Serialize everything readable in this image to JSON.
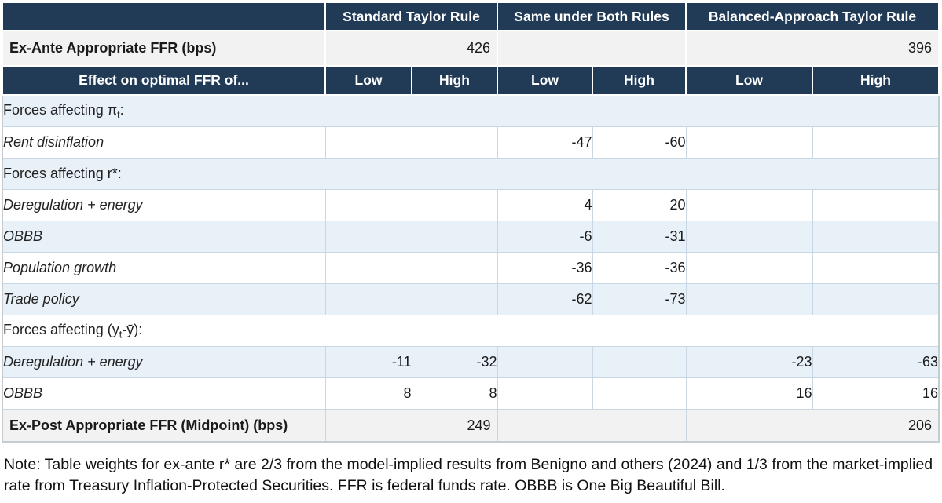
{
  "table": {
    "group_headers": [
      "",
      "Standard Taylor Rule",
      "Same under Both Rules",
      "Balanced-Approach Taylor Rule"
    ],
    "ex_ante": {
      "label": "Ex-Ante Appropriate FFR (bps)",
      "standard": "426",
      "same": "",
      "balanced": "396"
    },
    "effect_header": {
      "label": "Effect on optimal FFR of...",
      "low": "Low",
      "high": "High"
    },
    "rows": [
      {
        "kind": "section",
        "bg": "blue",
        "segments": [
          {
            "t": "Forces affecting π"
          },
          {
            "t": "t",
            "sub": true
          },
          {
            "t": ":"
          }
        ]
      },
      {
        "kind": "item",
        "bg": "white",
        "label": "Rent disinflation",
        "cells": [
          "",
          "",
          "-47",
          "-60",
          "",
          ""
        ]
      },
      {
        "kind": "section",
        "bg": "blue",
        "segments": [
          {
            "t": "Forces affecting r*:"
          }
        ]
      },
      {
        "kind": "item",
        "bg": "white",
        "label": "Deregulation + energy",
        "cells": [
          "",
          "",
          "4",
          "20",
          "",
          ""
        ]
      },
      {
        "kind": "item",
        "bg": "blue",
        "label": "OBBB",
        "cells": [
          "",
          "",
          "-6",
          "-31",
          "",
          ""
        ]
      },
      {
        "kind": "item",
        "bg": "white",
        "label": "Population growth",
        "cells": [
          "",
          "",
          "-36",
          "-36",
          "",
          ""
        ]
      },
      {
        "kind": "item",
        "bg": "blue",
        "label": "Trade policy",
        "cells": [
          "",
          "",
          "-62",
          "-73",
          "",
          ""
        ]
      },
      {
        "kind": "section",
        "bg": "white",
        "segments": [
          {
            "t": "Forces affecting (y"
          },
          {
            "t": "t",
            "sub": true
          },
          {
            "t": "-ȳ):"
          }
        ]
      },
      {
        "kind": "item",
        "bg": "blue",
        "label": "Deregulation + energy",
        "cells": [
          "-11",
          "-32",
          "",
          "",
          "-23",
          "-63"
        ]
      },
      {
        "kind": "item",
        "bg": "white",
        "label": "OBBB",
        "cells": [
          "8",
          "8",
          "",
          "",
          "16",
          "16"
        ]
      }
    ],
    "ex_post": {
      "label": "Ex-Post Appropriate FFR (Midpoint) (bps)",
      "standard": "249",
      "same": "",
      "balanced": "206"
    }
  },
  "note": "Note: Table weights for ex-ante r* are 2/3 from the model-implied results from Benigno and others (2024) and 1/3 from the market-implied rate from Treasury Inflation-Protected Securities. FFR is federal funds rate. OBBB is One Big Beautiful Bill.",
  "colors": {
    "header_navy": "#213a56",
    "stripe_blue": "#e8f0f8",
    "summary_gray": "#f2f2f2",
    "body_border": "#c9d7e4"
  },
  "chart_data": {
    "type": "table",
    "column_groups": [
      "Standard Taylor Rule",
      "Same under Both Rules",
      "Balanced-Approach Taylor Rule"
    ],
    "sub_columns": [
      "Low",
      "High"
    ],
    "rows": [
      {
        "label": "Ex-Ante Appropriate FFR (bps)",
        "standard": 426,
        "balanced": 396
      },
      {
        "group": "Forces affecting πt:",
        "label": "Rent disinflation",
        "same_low": -47,
        "same_high": -60
      },
      {
        "group": "Forces affecting r*:",
        "label": "Deregulation + energy",
        "same_low": 4,
        "same_high": 20
      },
      {
        "group": "Forces affecting r*:",
        "label": "OBBB",
        "same_low": -6,
        "same_high": -31
      },
      {
        "group": "Forces affecting r*:",
        "label": "Population growth",
        "same_low": -36,
        "same_high": -36
      },
      {
        "group": "Forces affecting r*:",
        "label": "Trade policy",
        "same_low": -62,
        "same_high": -73
      },
      {
        "group": "Forces affecting (yt-ȳ):",
        "label": "Deregulation + energy",
        "standard_low": -11,
        "standard_high": -32,
        "balanced_low": -23,
        "balanced_high": -63
      },
      {
        "group": "Forces affecting (yt-ȳ):",
        "label": "OBBB",
        "standard_low": 8,
        "standard_high": 8,
        "balanced_low": 16,
        "balanced_high": 16
      },
      {
        "label": "Ex-Post Appropriate FFR (Midpoint) (bps)",
        "standard": 249,
        "balanced": 206
      }
    ]
  }
}
